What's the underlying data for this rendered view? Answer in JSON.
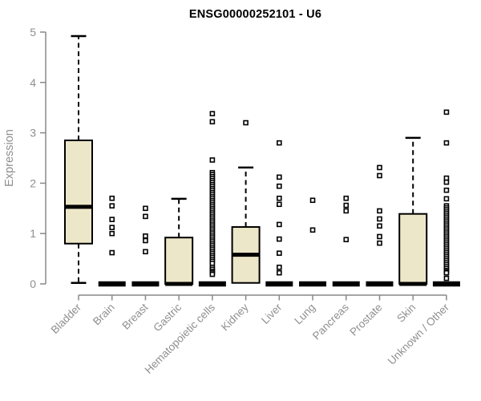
{
  "chart_data": {
    "type": "boxplot",
    "title": "ENSG00000252101 - U6",
    "xlabel": "",
    "ylabel": "Expression",
    "ylim": [
      0,
      5
    ],
    "yticks": [
      0,
      1,
      2,
      3,
      4,
      5
    ],
    "grid": false,
    "categories": [
      "Bladder",
      "Brain",
      "Breast",
      "Gastric",
      "Hematopoietic cells",
      "Kidney",
      "Liver",
      "Lung",
      "Pancreas",
      "Prostate",
      "Skin",
      "Unknown / Other"
    ],
    "series": [
      {
        "category": "Bladder",
        "whisker_low": 0.02,
        "q1": 0.8,
        "median": 1.53,
        "q3": 2.85,
        "whisker_high": 4.92,
        "outliers": []
      },
      {
        "category": "Brain",
        "whisker_low": 0,
        "q1": 0,
        "median": 0,
        "q3": 0,
        "whisker_high": 0,
        "outliers": [
          1.7,
          1.55,
          1.28,
          1.12,
          1.0,
          0.62
        ]
      },
      {
        "category": "Breast",
        "whisker_low": 0,
        "q1": 0,
        "median": 0,
        "q3": 0,
        "whisker_high": 0,
        "outliers": [
          1.5,
          1.34,
          0.95,
          0.86,
          0.64
        ]
      },
      {
        "category": "Gastric",
        "whisker_low": 0,
        "q1": 0,
        "median": 0,
        "q3": 0.92,
        "whisker_high": 1.69,
        "outliers": []
      },
      {
        "category": "Hematopoietic cells",
        "whisker_low": 0,
        "q1": 0,
        "median": 0,
        "q3": 0,
        "whisker_high": 0,
        "outliers": [
          3.38,
          3.22,
          2.46,
          2.21,
          2.17,
          2.13,
          2.09,
          2.05,
          2.01,
          1.97,
          1.93,
          1.89,
          1.85,
          1.81,
          1.77,
          1.73,
          1.69,
          1.65,
          1.61,
          1.57,
          1.53,
          1.49,
          1.45,
          1.41,
          1.37,
          1.33,
          1.29,
          1.25,
          1.21,
          1.17,
          1.13,
          1.09,
          1.05,
          1.01,
          0.97,
          0.93,
          0.89,
          0.85,
          0.81,
          0.77,
          0.73,
          0.69,
          0.65,
          0.61,
          0.57,
          0.53,
          0.49,
          0.45,
          0.41,
          0.33,
          0.29,
          0.25,
          0.22,
          0.19
        ]
      },
      {
        "category": "Kidney",
        "whisker_low": 0.02,
        "q1": 0.02,
        "median": 0.58,
        "q3": 1.13,
        "whisker_high": 2.31,
        "outliers": [
          3.2
        ]
      },
      {
        "category": "Liver",
        "whisker_low": 0,
        "q1": 0,
        "median": 0,
        "q3": 0,
        "whisker_high": 0,
        "outliers": [
          2.8,
          2.12,
          1.94,
          1.7,
          1.58,
          1.18,
          0.89,
          0.61,
          0.33,
          0.22
        ]
      },
      {
        "category": "Lung",
        "whisker_low": 0,
        "q1": 0,
        "median": 0,
        "q3": 0,
        "whisker_high": 0,
        "outliers": [
          1.66,
          1.07
        ]
      },
      {
        "category": "Pancreas",
        "whisker_low": 0,
        "q1": 0,
        "median": 0,
        "q3": 0,
        "whisker_high": 0,
        "outliers": [
          1.7,
          1.56,
          1.45,
          0.88
        ]
      },
      {
        "category": "Prostate",
        "whisker_low": 0,
        "q1": 0,
        "median": 0,
        "q3": 0,
        "whisker_high": 0,
        "outliers": [
          2.31,
          2.15,
          1.45,
          1.29,
          1.15,
          0.94,
          0.81
        ]
      },
      {
        "category": "Skin",
        "whisker_low": 0,
        "q1": 0,
        "median": 0,
        "q3": 1.39,
        "whisker_high": 2.9,
        "outliers": []
      },
      {
        "category": "Unknown / Other",
        "whisker_low": 0,
        "q1": 0,
        "median": 0,
        "q3": 0,
        "whisker_high": 0,
        "outliers": [
          3.41,
          2.8,
          2.1,
          2.02,
          1.86,
          1.69,
          1.55,
          1.51,
          1.47,
          1.43,
          1.39,
          1.35,
          1.31,
          1.27,
          1.23,
          1.19,
          1.15,
          1.11,
          1.07,
          1.03,
          0.99,
          0.95,
          0.91,
          0.87,
          0.83,
          0.79,
          0.75,
          0.71,
          0.67,
          0.63,
          0.59,
          0.55,
          0.51,
          0.47,
          0.43,
          0.39,
          0.35,
          0.31,
          0.27,
          0.24,
          0.22,
          0.11
        ]
      }
    ],
    "style": {
      "box_fill": "#EDE7C9",
      "box_stroke": "#000000",
      "median_color": "#000000",
      "whisker_color": "#000000",
      "outlier_color": "#000000",
      "axis_color": "#888888",
      "tick_label_color": "#8F8F8F",
      "title_color": "#000000"
    }
  }
}
